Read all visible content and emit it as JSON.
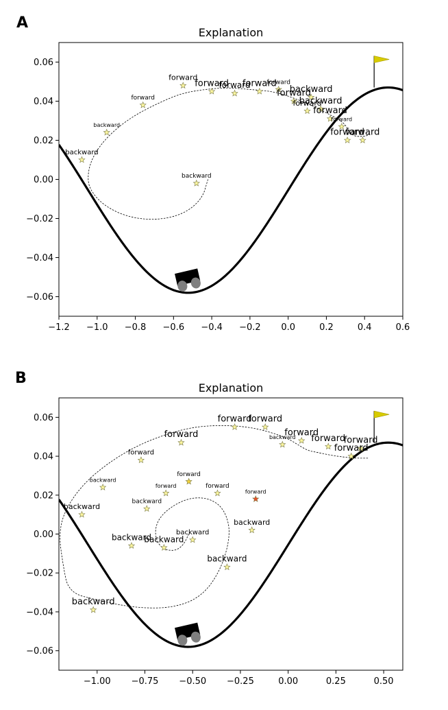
{
  "chart_data": [
    {
      "type": "scatter",
      "panel_label": "A",
      "title": "Explanation",
      "xlabel": "",
      "ylabel": "",
      "xlim": [
        -1.2,
        0.6
      ],
      "ylim": [
        -0.07,
        0.07
      ],
      "x_ticks": [
        -1.2,
        -1.0,
        -0.8,
        -0.6,
        -0.4,
        -0.2,
        0.0,
        0.2,
        0.4,
        0.6
      ],
      "x_tick_labels": [
        "−1.2",
        "−1.0",
        "−0.8",
        "−0.6",
        "−0.4",
        "−0.2",
        "0.0",
        "0.2",
        "0.4",
        "0.6"
      ],
      "y_ticks": [
        0.06,
        0.04,
        0.02,
        0.0,
        -0.02,
        -0.04,
        -0.06
      ],
      "y_tick_labels": [
        "0.06",
        "0.04",
        "0.02",
        "0.00",
        "−0.02",
        "−0.04",
        "−0.06"
      ],
      "mountain": {
        "amplitude": 0.0525,
        "offset": -0.0055,
        "frequency": 3
      },
      "goal_flag": {
        "x": 0.45,
        "y": 0.047
      },
      "car": {
        "x": -0.52,
        "y": -0.058
      },
      "trajectory": [
        [
          -0.42,
          0.0
        ],
        [
          -0.45,
          -0.01
        ],
        [
          -0.55,
          -0.018
        ],
        [
          -0.7,
          -0.021
        ],
        [
          -0.85,
          -0.019
        ],
        [
          -0.97,
          -0.013
        ],
        [
          -1.04,
          -0.005
        ],
        [
          -1.05,
          0.002
        ],
        [
          -1.03,
          0.01
        ],
        [
          -0.98,
          0.018
        ],
        [
          -0.9,
          0.026
        ],
        [
          -0.8,
          0.033
        ],
        [
          -0.68,
          0.039
        ],
        [
          -0.56,
          0.044
        ],
        [
          -0.44,
          0.046
        ],
        [
          -0.32,
          0.047
        ],
        [
          -0.2,
          0.046
        ],
        [
          -0.08,
          0.045
        ],
        [
          0.02,
          0.042
        ],
        [
          0.12,
          0.038
        ],
        [
          0.2,
          0.034
        ],
        [
          0.26,
          0.031
        ],
        [
          0.3,
          0.028
        ],
        [
          0.32,
          0.024
        ],
        [
          0.35,
          0.022
        ],
        [
          0.38,
          0.022
        ],
        [
          0.4,
          0.022
        ],
        [
          0.43,
          0.023
        ]
      ],
      "points": [
        {
          "x": -1.08,
          "y": 0.01,
          "label": "backward",
          "fs": 10,
          "color": "#fbf5a0"
        },
        {
          "x": -0.95,
          "y": 0.024,
          "label": "backward",
          "fs": 8,
          "color": "#fbf5a0"
        },
        {
          "x": -0.76,
          "y": 0.038,
          "label": "forward",
          "fs": 9,
          "color": "#fbf5a0"
        },
        {
          "x": -0.55,
          "y": 0.048,
          "label": "forward",
          "fs": 11,
          "color": "#fbf5a0"
        },
        {
          "x": -0.4,
          "y": 0.045,
          "label": "forward",
          "fs": 13,
          "color": "#fbf5a0"
        },
        {
          "x": -0.28,
          "y": 0.044,
          "label": "forward",
          "fs": 12,
          "color": "#fbf5a0"
        },
        {
          "x": -0.15,
          "y": 0.045,
          "label": "forward",
          "fs": 13,
          "color": "#fbf5a0"
        },
        {
          "x": -0.05,
          "y": 0.046,
          "label": "forward",
          "fs": 9,
          "color": "#fbf5a0"
        },
        {
          "x": 0.03,
          "y": 0.04,
          "label": "forward",
          "fs": 13,
          "color": "#fbf5a0"
        },
        {
          "x": 0.1,
          "y": 0.035,
          "label": "forward",
          "fs": 11,
          "color": "#fbf5a0"
        },
        {
          "x": 0.12,
          "y": 0.042,
          "label": "backward",
          "fs": 13,
          "color": "#fbf5a0"
        },
        {
          "x": 0.17,
          "y": 0.036,
          "label": "backward",
          "fs": 13,
          "color": "#fbf5a0"
        },
        {
          "x": 0.22,
          "y": 0.031,
          "label": "forward",
          "fs": 13,
          "color": "#fbf5a0"
        },
        {
          "x": 0.28,
          "y": 0.027,
          "label": "forward",
          "fs": 8,
          "color": "#fbf5a0"
        },
        {
          "x": 0.31,
          "y": 0.02,
          "label": "forward",
          "fs": 13,
          "color": "#fbf5a0"
        },
        {
          "x": 0.39,
          "y": 0.02,
          "label": "forward",
          "fs": 13,
          "color": "#fbf5a0"
        },
        {
          "x": -0.48,
          "y": -0.002,
          "label": "backward",
          "fs": 9,
          "color": "#fbf5a0"
        }
      ]
    },
    {
      "type": "scatter",
      "panel_label": "B",
      "title": "Explanation",
      "xlabel": "",
      "ylabel": "",
      "xlim": [
        -1.2,
        0.6
      ],
      "ylim": [
        -0.07,
        0.07
      ],
      "x_ticks": [
        -1.0,
        -0.75,
        -0.5,
        -0.25,
        0.0,
        0.25,
        0.5
      ],
      "x_tick_labels": [
        "−1.00",
        "−0.75",
        "−0.50",
        "−0.25",
        "0.00",
        "0.25",
        "0.50"
      ],
      "y_ticks": [
        0.06,
        0.04,
        0.02,
        0.0,
        -0.02,
        -0.04,
        -0.06
      ],
      "y_tick_labels": [
        "0.06",
        "0.04",
        "0.02",
        "0.00",
        "−0.02",
        "−0.04",
        "−0.06"
      ],
      "mountain": {
        "amplitude": 0.0525,
        "offset": -0.0055,
        "frequency": 3
      },
      "goal_flag": {
        "x": 0.45,
        "y": 0.047
      },
      "car": {
        "x": -0.52,
        "y": -0.058
      },
      "trajectory": [
        [
          -0.52,
          0.0
        ],
        [
          -0.55,
          -0.006
        ],
        [
          -0.6,
          -0.009
        ],
        [
          -0.67,
          -0.007
        ],
        [
          -0.7,
          0.0
        ],
        [
          -0.68,
          0.008
        ],
        [
          -0.6,
          0.015
        ],
        [
          -0.5,
          0.019
        ],
        [
          -0.4,
          0.018
        ],
        [
          -0.33,
          0.012
        ],
        [
          -0.3,
          0.0
        ],
        [
          -0.35,
          -0.018
        ],
        [
          -0.45,
          -0.032
        ],
        [
          -0.6,
          -0.038
        ],
        [
          -0.8,
          -0.038
        ],
        [
          -1.0,
          -0.034
        ],
        [
          -1.15,
          -0.03
        ],
        [
          -1.18,
          -0.015
        ],
        [
          -1.2,
          0.0
        ],
        [
          -1.17,
          0.012
        ],
        [
          -1.08,
          0.025
        ],
        [
          -0.95,
          0.036
        ],
        [
          -0.8,
          0.045
        ],
        [
          -0.65,
          0.051
        ],
        [
          -0.5,
          0.055
        ],
        [
          -0.35,
          0.056
        ],
        [
          -0.2,
          0.055
        ],
        [
          -0.08,
          0.052
        ],
        [
          0.0,
          0.049
        ],
        [
          0.05,
          0.046
        ],
        [
          0.1,
          0.043
        ],
        [
          0.15,
          0.042
        ],
        [
          0.25,
          0.04
        ],
        [
          0.35,
          0.039
        ],
        [
          0.42,
          0.039
        ]
      ],
      "points": [
        {
          "x": -1.08,
          "y": 0.01,
          "label": "backward",
          "fs": 11,
          "color": "#fbf5a0"
        },
        {
          "x": -0.97,
          "y": 0.024,
          "label": "backward",
          "fs": 8,
          "color": "#fbf5a0"
        },
        {
          "x": -0.77,
          "y": 0.038,
          "label": "forward",
          "fs": 10,
          "color": "#fbf5a0"
        },
        {
          "x": -0.56,
          "y": 0.047,
          "label": "forward",
          "fs": 13,
          "color": "#fbf5a0"
        },
        {
          "x": -0.28,
          "y": 0.055,
          "label": "forward",
          "fs": 13,
          "color": "#fbf5a0"
        },
        {
          "x": -0.12,
          "y": 0.055,
          "label": "forward",
          "fs": 13,
          "color": "#fbf5a0"
        },
        {
          "x": -0.03,
          "y": 0.046,
          "label": "backward",
          "fs": 8,
          "color": "#fbf5a0"
        },
        {
          "x": 0.07,
          "y": 0.048,
          "label": "forward",
          "fs": 13,
          "color": "#fbf5a0"
        },
        {
          "x": 0.21,
          "y": 0.045,
          "label": "forward",
          "fs": 13,
          "color": "#fbf5a0"
        },
        {
          "x": 0.38,
          "y": 0.044,
          "label": "forward",
          "fs": 13,
          "color": "#fbf5a0"
        },
        {
          "x": 0.33,
          "y": 0.04,
          "label": "forward",
          "fs": 13,
          "color": "#fbf5a0"
        },
        {
          "x": -0.64,
          "y": 0.021,
          "label": "forward",
          "fs": 8,
          "color": "#fbf5a0"
        },
        {
          "x": -0.52,
          "y": 0.027,
          "label": "forward",
          "fs": 9,
          "color": "#f2d23c"
        },
        {
          "x": -0.37,
          "y": 0.021,
          "label": "forward",
          "fs": 9,
          "color": "#fbf5a0"
        },
        {
          "x": -0.17,
          "y": 0.018,
          "label": "forward",
          "fs": 8,
          "color": "#e8502a"
        },
        {
          "x": -0.74,
          "y": 0.013,
          "label": "backward",
          "fs": 9,
          "color": "#fbf5a0"
        },
        {
          "x": -0.5,
          "y": -0.003,
          "label": "backward",
          "fs": 10,
          "color": "#fbf5a0"
        },
        {
          "x": -0.65,
          "y": -0.007,
          "label": "backward",
          "fs": 12,
          "color": "#fbf5a0"
        },
        {
          "x": -0.82,
          "y": -0.006,
          "label": "backward",
          "fs": 12,
          "color": "#fbf5a0"
        },
        {
          "x": -0.19,
          "y": 0.002,
          "label": "backward",
          "fs": 11,
          "color": "#fbf5a0"
        },
        {
          "x": -0.32,
          "y": -0.017,
          "label": "backward",
          "fs": 12,
          "color": "#fbf5a0"
        },
        {
          "x": -1.02,
          "y": -0.039,
          "label": "backward",
          "fs": 13,
          "color": "#fbf5a0"
        }
      ]
    }
  ]
}
